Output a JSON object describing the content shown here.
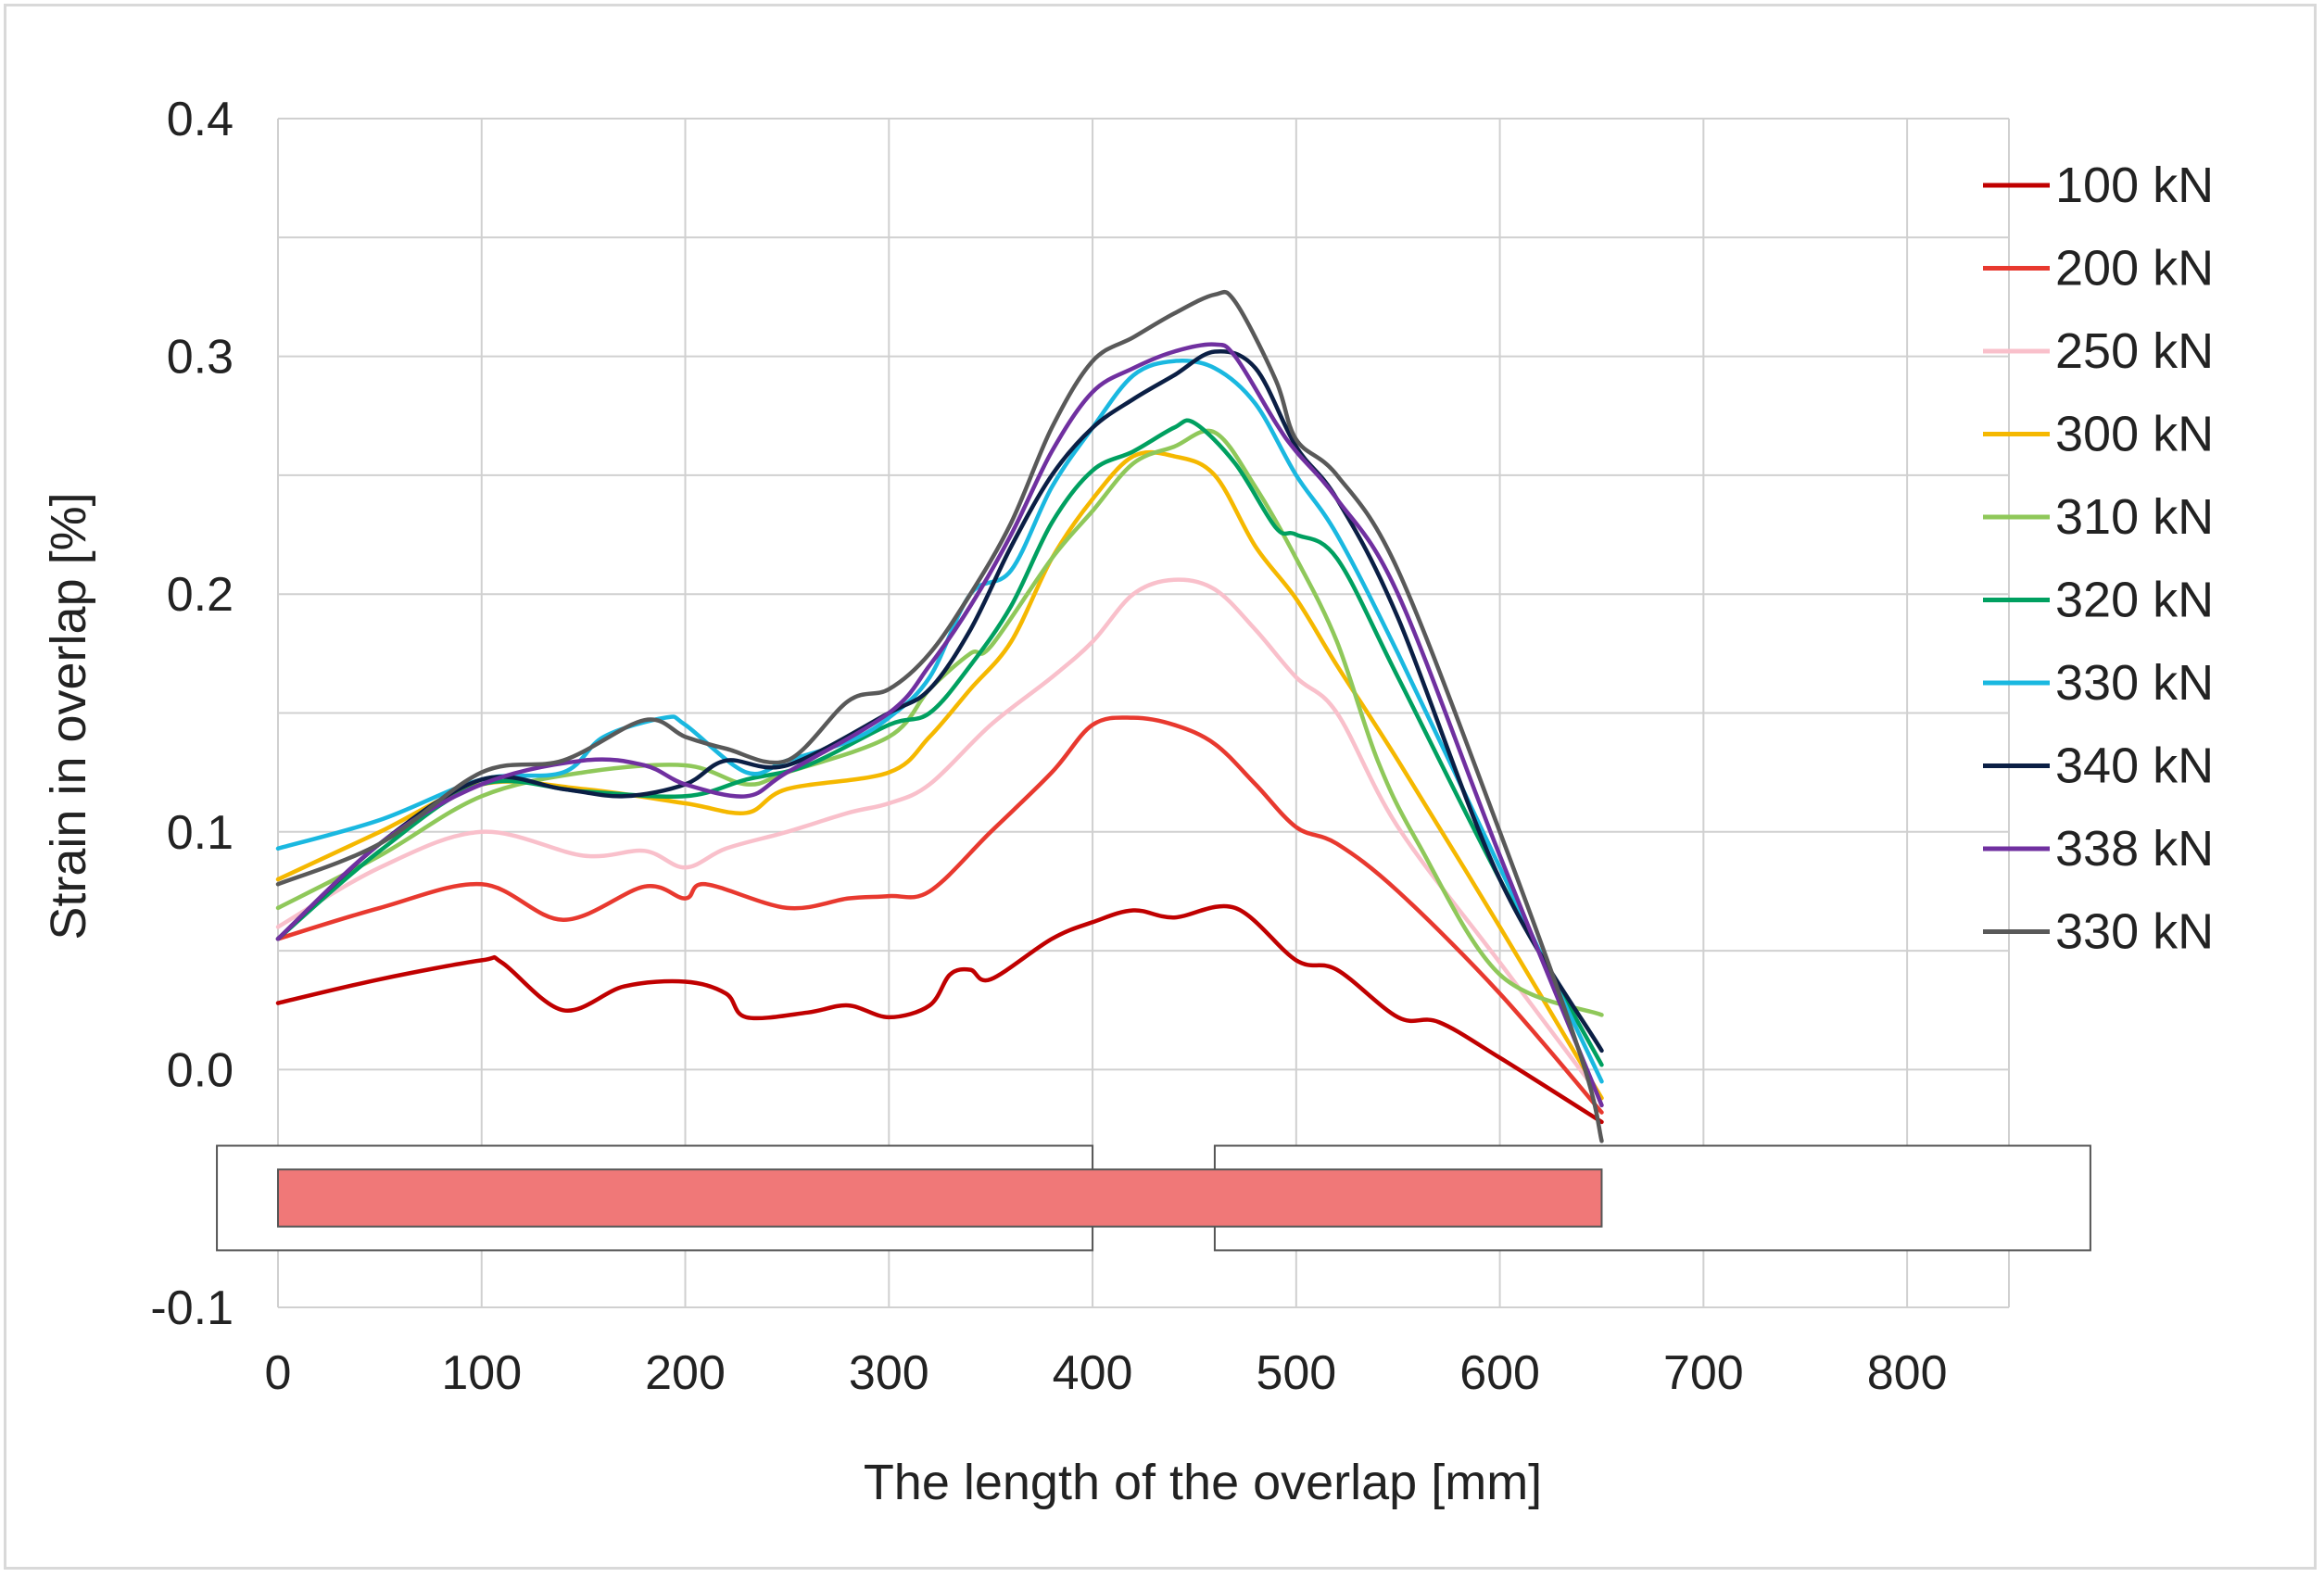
{
  "chart_data": {
    "type": "line",
    "title": "",
    "xlabel": "The length of the overlap [mm]",
    "ylabel": "Strain in overlap [%]",
    "xlim": [
      0,
      850
    ],
    "ylim": [
      -0.1,
      0.4
    ],
    "x_ticks": [
      0,
      100,
      200,
      300,
      400,
      500,
      600,
      700,
      800
    ],
    "y_ticks": [
      -0.1,
      0.0,
      0.1,
      0.2,
      0.3,
      0.4
    ],
    "y_tick_labels": [
      "-0.1",
      "0.0",
      "0.1",
      "0.2",
      "0.3",
      "0.4"
    ],
    "grid": true,
    "legend_position": "right",
    "series": [
      {
        "name": "100 kN",
        "color": "#c00000",
        "x": [
          0,
          50,
          100,
          110,
          140,
          170,
          200,
          220,
          230,
          260,
          280,
          300,
          320,
          330,
          340,
          350,
          380,
          400,
          420,
          440,
          470,
          500,
          520,
          550,
          570,
          600,
          650
        ],
        "y": [
          0.028,
          0.038,
          0.046,
          0.045,
          0.025,
          0.035,
          0.037,
          0.032,
          0.022,
          0.024,
          0.027,
          0.022,
          0.027,
          0.04,
          0.042,
          0.038,
          0.055,
          0.062,
          0.067,
          0.064,
          0.068,
          0.046,
          0.042,
          0.022,
          0.02,
          0.005,
          -0.022
        ]
      },
      {
        "name": "200 kN",
        "color": "#e8392f",
        "x": [
          0,
          50,
          100,
          140,
          180,
          200,
          210,
          250,
          280,
          300,
          320,
          350,
          380,
          400,
          420,
          440,
          460,
          480,
          500,
          520,
          550,
          600,
          650
        ],
        "y": [
          0.055,
          0.068,
          0.078,
          0.063,
          0.077,
          0.072,
          0.078,
          0.068,
          0.072,
          0.073,
          0.075,
          0.1,
          0.125,
          0.145,
          0.148,
          0.145,
          0.137,
          0.12,
          0.102,
          0.095,
          0.075,
          0.032,
          -0.018
        ]
      },
      {
        "name": "250 kN",
        "color": "#f9c0cb",
        "x": [
          0,
          50,
          100,
          150,
          180,
          200,
          220,
          250,
          280,
          300,
          320,
          350,
          380,
          400,
          420,
          440,
          460,
          480,
          500,
          520,
          550,
          600,
          650
        ],
        "y": [
          0.06,
          0.085,
          0.1,
          0.09,
          0.092,
          0.085,
          0.093,
          0.1,
          0.108,
          0.112,
          0.12,
          0.145,
          0.165,
          0.18,
          0.2,
          0.206,
          0.202,
          0.185,
          0.165,
          0.15,
          0.102,
          0.045,
          -0.012
        ]
      },
      {
        "name": "300 kN",
        "color": "#f5b800",
        "x": [
          0,
          50,
          100,
          150,
          200,
          230,
          250,
          300,
          320,
          340,
          360,
          380,
          400,
          420,
          440,
          460,
          480,
          500,
          520,
          550,
          600,
          650
        ],
        "y": [
          0.08,
          0.1,
          0.12,
          0.118,
          0.112,
          0.108,
          0.118,
          0.125,
          0.14,
          0.16,
          0.18,
          0.215,
          0.24,
          0.258,
          0.258,
          0.25,
          0.22,
          0.198,
          0.17,
          0.13,
          0.06,
          -0.012
        ]
      },
      {
        "name": "310 kN",
        "color": "#8fc85a",
        "x": [
          0,
          50,
          100,
          150,
          200,
          230,
          250,
          300,
          320,
          340,
          350,
          380,
          400,
          420,
          440,
          460,
          480,
          500,
          520,
          540,
          560,
          600,
          650
        ],
        "y": [
          0.068,
          0.09,
          0.115,
          0.125,
          0.128,
          0.12,
          0.125,
          0.14,
          0.16,
          0.175,
          0.178,
          0.215,
          0.235,
          0.255,
          0.262,
          0.268,
          0.245,
          0.215,
          0.18,
          0.13,
          0.095,
          0.04,
          0.023
        ]
      },
      {
        "name": "320 kN",
        "color": "#00a060",
        "x": [
          0,
          50,
          100,
          150,
          200,
          230,
          260,
          300,
          320,
          340,
          360,
          380,
          400,
          420,
          440,
          450,
          470,
          490,
          500,
          520,
          550,
          600,
          650
        ],
        "y": [
          0.055,
          0.092,
          0.12,
          0.117,
          0.115,
          0.122,
          0.128,
          0.145,
          0.15,
          0.17,
          0.195,
          0.23,
          0.252,
          0.26,
          0.27,
          0.272,
          0.255,
          0.228,
          0.225,
          0.215,
          0.165,
          0.08,
          0.002
        ]
      },
      {
        "name": "330 kN",
        "color": "#1ab8e0",
        "x": [
          0,
          50,
          100,
          140,
          160,
          190,
          200,
          230,
          250,
          280,
          300,
          320,
          340,
          360,
          380,
          400,
          420,
          440,
          460,
          480,
          500,
          520,
          550,
          600,
          650
        ],
        "y": [
          0.093,
          0.105,
          0.122,
          0.125,
          0.14,
          0.148,
          0.145,
          0.125,
          0.13,
          0.138,
          0.148,
          0.165,
          0.2,
          0.21,
          0.245,
          0.27,
          0.292,
          0.298,
          0.295,
          0.28,
          0.25,
          0.225,
          0.175,
          0.085,
          -0.005
        ]
      },
      {
        "name": "340 kN",
        "color": "#0b1f45",
        "x": [
          0,
          50,
          100,
          140,
          170,
          200,
          220,
          250,
          300,
          320,
          340,
          360,
          380,
          400,
          420,
          440,
          460,
          480,
          500,
          520,
          550,
          600,
          650
        ],
        "y": [
          0.055,
          0.095,
          0.122,
          0.118,
          0.115,
          0.12,
          0.13,
          0.128,
          0.15,
          0.16,
          0.185,
          0.22,
          0.25,
          0.27,
          0.282,
          0.292,
          0.302,
          0.295,
          0.262,
          0.24,
          0.19,
          0.08,
          0.008
        ]
      },
      {
        "name": "338 kN",
        "color": "#7030a0",
        "x": [
          0,
          50,
          100,
          150,
          180,
          200,
          230,
          250,
          300,
          320,
          340,
          360,
          380,
          400,
          420,
          440,
          460,
          470,
          490,
          500,
          520,
          550,
          600,
          650
        ],
        "y": [
          0.055,
          0.095,
          0.12,
          0.13,
          0.128,
          0.12,
          0.115,
          0.125,
          0.15,
          0.17,
          0.195,
          0.225,
          0.26,
          0.285,
          0.295,
          0.302,
          0.305,
          0.3,
          0.272,
          0.26,
          0.24,
          0.2,
          0.09,
          -0.015
        ]
      },
      {
        "name": "330 kN",
        "color": "#595959",
        "x": [
          0,
          50,
          100,
          140,
          180,
          200,
          220,
          250,
          280,
          300,
          320,
          340,
          360,
          380,
          400,
          420,
          440,
          460,
          470,
          490,
          500,
          520,
          550,
          600,
          640,
          650
        ],
        "y": [
          0.078,
          0.095,
          0.125,
          0.13,
          0.147,
          0.14,
          0.135,
          0.13,
          0.155,
          0.16,
          0.175,
          0.2,
          0.23,
          0.27,
          0.298,
          0.308,
          0.318,
          0.326,
          0.323,
          0.29,
          0.265,
          0.25,
          0.21,
          0.1,
          0.005,
          -0.03
        ]
      }
    ],
    "annotations": {
      "overlap_bar_color": "#f07878",
      "overlap_bar_range_mm": [
        0,
        650
      ],
      "left_plate_range_mm": [
        -30,
        400
      ],
      "right_plate_range_mm": [
        460,
        890
      ]
    }
  }
}
